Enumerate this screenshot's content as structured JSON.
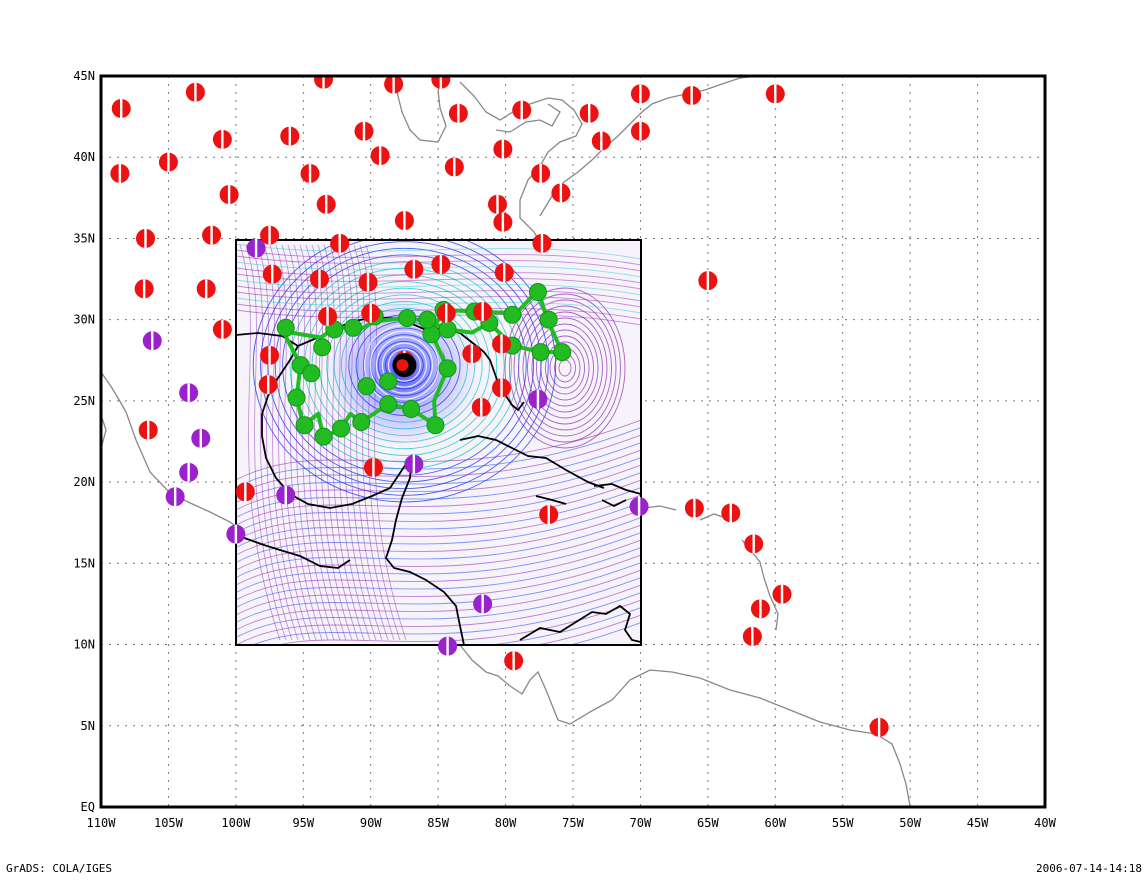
{
  "map": {
    "type": "weather-map",
    "axes": {
      "x_ticks": [
        "110W",
        "105W",
        "100W",
        "95W",
        "90W",
        "85W",
        "80W",
        "75W",
        "70W",
        "65W",
        "60W",
        "55W",
        "50W",
        "45W",
        "40W"
      ],
      "y_ticks": [
        "EQ",
        "5N",
        "10N",
        "15N",
        "20N",
        "25N",
        "30N",
        "35N",
        "40N",
        "45N"
      ],
      "lon_range": [
        -110,
        -40
      ],
      "lat_range": [
        0,
        45
      ],
      "grid": "dotted"
    },
    "inset_box": {
      "lon": [
        -100,
        -70
      ],
      "lat": [
        10,
        35
      ]
    },
    "colors": {
      "station_red": "#ee1111",
      "station_purple": "#9922cc",
      "track_green": "#22bb22",
      "coast_outer": "#888888",
      "coast_inner": "#000000",
      "stream_blue": "#2244ee",
      "stream_purple": "#8822aa",
      "stream_cyan": "#22cccc"
    },
    "stations_red": [
      [
        -108.5,
        43
      ],
      [
        -103,
        44
      ],
      [
        -93.5,
        44.8
      ],
      [
        -88.3,
        44.5
      ],
      [
        -84.8,
        44.8
      ],
      [
        -83.5,
        42.7
      ],
      [
        -78.8,
        42.9
      ],
      [
        -73.8,
        42.7
      ],
      [
        -70,
        43.9
      ],
      [
        -66.2,
        43.8
      ],
      [
        -60,
        43.9
      ],
      [
        -101,
        41.1
      ],
      [
        -96,
        41.3
      ],
      [
        -90.5,
        41.6
      ],
      [
        -89.3,
        40.1
      ],
      [
        -83.8,
        39.4
      ],
      [
        -80.2,
        40.5
      ],
      [
        -77.4,
        39
      ],
      [
        -72.9,
        41
      ],
      [
        -70,
        41.6
      ],
      [
        -108.6,
        39
      ],
      [
        -105,
        39.7
      ],
      [
        -100.5,
        37.7
      ],
      [
        -94.5,
        39
      ],
      [
        -93.3,
        37.1
      ],
      [
        -87.5,
        36.1
      ],
      [
        -80.6,
        37.1
      ],
      [
        -80.2,
        36
      ],
      [
        -75.9,
        37.8
      ],
      [
        -106.7,
        35
      ],
      [
        -101.8,
        35.2
      ],
      [
        -97.5,
        35.2
      ],
      [
        -92.3,
        34.7
      ],
      [
        -77.3,
        34.7
      ],
      [
        -106.8,
        31.9
      ],
      [
        -102.2,
        31.9
      ],
      [
        -97.3,
        32.8
      ],
      [
        -93.8,
        32.5
      ],
      [
        -90.2,
        32.3
      ],
      [
        -86.8,
        33.1
      ],
      [
        -84.8,
        33.4
      ],
      [
        -80.1,
        32.9
      ],
      [
        -65,
        32.4
      ],
      [
        -101,
        29.4
      ],
      [
        -97.5,
        27.8
      ],
      [
        -97.6,
        26
      ],
      [
        -106.5,
        23.2
      ],
      [
        -93.2,
        30.2
      ],
      [
        -90,
        30.4
      ],
      [
        -84.4,
        30.4
      ],
      [
        -81.7,
        30.5
      ],
      [
        -82.5,
        27.9
      ],
      [
        -80.3,
        28.5
      ],
      [
        -80.3,
        25.8
      ],
      [
        -81.8,
        24.6
      ],
      [
        -87.5,
        27.5
      ],
      [
        -89.8,
        20.9
      ],
      [
        -99.3,
        19.4
      ],
      [
        -76.8,
        18
      ],
      [
        -66,
        18.4
      ],
      [
        -63.3,
        18.1
      ],
      [
        -61.6,
        16.2
      ],
      [
        -59.5,
        13.1
      ],
      [
        -61.1,
        12.2
      ],
      [
        -61.7,
        10.5
      ],
      [
        -79.4,
        9
      ],
      [
        -52.3,
        4.9
      ]
    ],
    "stations_purple": [
      [
        -98.5,
        34.4
      ],
      [
        -106.2,
        28.7
      ],
      [
        -103.5,
        25.5
      ],
      [
        -102.6,
        22.7
      ],
      [
        -103.5,
        20.6
      ],
      [
        -104.5,
        19.1
      ],
      [
        -100,
        16.8
      ],
      [
        -96.3,
        19.2
      ],
      [
        -86.8,
        21.1
      ],
      [
        -81.7,
        12.5
      ],
      [
        -84.3,
        9.9
      ],
      [
        -77.6,
        25.1
      ],
      [
        -70.1,
        18.5
      ]
    ],
    "storm_center": [
      -87.5,
      27.2
    ],
    "track_green": [
      [
        -96.5,
        29.3
      ],
      [
        -95.2,
        27.2
      ],
      [
        -95.5,
        25.2
      ],
      [
        -95,
        23.5
      ],
      [
        -93.9,
        24.2
      ],
      [
        -93.5,
        22.8
      ],
      [
        -92.3,
        23.2
      ],
      [
        -91.5,
        24.2
      ],
      [
        -90.7,
        23.7
      ],
      [
        -88.7,
        24.8
      ],
      [
        -87,
        24.5
      ],
      [
        -85.2,
        23.5
      ],
      [
        -85.3,
        25
      ],
      [
        -84.3,
        27
      ],
      [
        -84.8,
        27.9
      ],
      [
        -85.5,
        29.2
      ],
      [
        -84.6,
        30.6
      ],
      [
        -82.3,
        30.5
      ],
      [
        -79.2,
        30.4
      ],
      [
        -77.6,
        31.8
      ],
      [
        -76.9,
        30
      ],
      [
        -75.8,
        28
      ],
      [
        -77.3,
        28
      ],
      [
        -79.5,
        28.4
      ],
      [
        -81.2,
        29.8
      ],
      [
        -82.5,
        29.2
      ],
      [
        -84.3,
        29.4
      ],
      [
        -85.7,
        29.9
      ],
      [
        -87.3,
        30.1
      ],
      [
        -89.7,
        29.9
      ],
      [
        -91,
        29.3
      ],
      [
        -92.5,
        29.6
      ],
      [
        -93.7,
        28.9
      ],
      [
        -95.2,
        29.1
      ],
      [
        -96.5,
        29.3
      ]
    ],
    "track_green_dots": [
      [
        -96.3,
        29.5
      ],
      [
        -95.2,
        27.2
      ],
      [
        -95.5,
        25.2
      ],
      [
        -94.9,
        23.5
      ],
      [
        -93.5,
        22.8
      ],
      [
        -92.2,
        23.3
      ],
      [
        -90.7,
        23.7
      ],
      [
        -88.7,
        24.8
      ],
      [
        -87,
        24.5
      ],
      [
        -85.2,
        23.5
      ],
      [
        -84.3,
        27
      ],
      [
        -85.5,
        29.1
      ],
      [
        -84.6,
        30.6
      ],
      [
        -82.3,
        30.5
      ],
      [
        -79.5,
        30.3
      ],
      [
        -77.6,
        31.7
      ],
      [
        -76.8,
        30
      ],
      [
        -75.8,
        28
      ],
      [
        -77.4,
        28
      ],
      [
        -79.5,
        28.4
      ],
      [
        -81.2,
        29.8
      ],
      [
        -84.3,
        29.4
      ],
      [
        -85.8,
        30
      ],
      [
        -87.3,
        30.1
      ],
      [
        -89.7,
        30.2
      ],
      [
        -91.3,
        29.5
      ],
      [
        -92.7,
        29.4
      ],
      [
        -93.6,
        28.3
      ],
      [
        -94.4,
        26.7
      ],
      [
        -90.3,
        25.9
      ],
      [
        -88.7,
        26.2
      ]
    ]
  },
  "footer": {
    "left": "GrADS: COLA/IGES",
    "right": "2006-07-14-14:18"
  }
}
